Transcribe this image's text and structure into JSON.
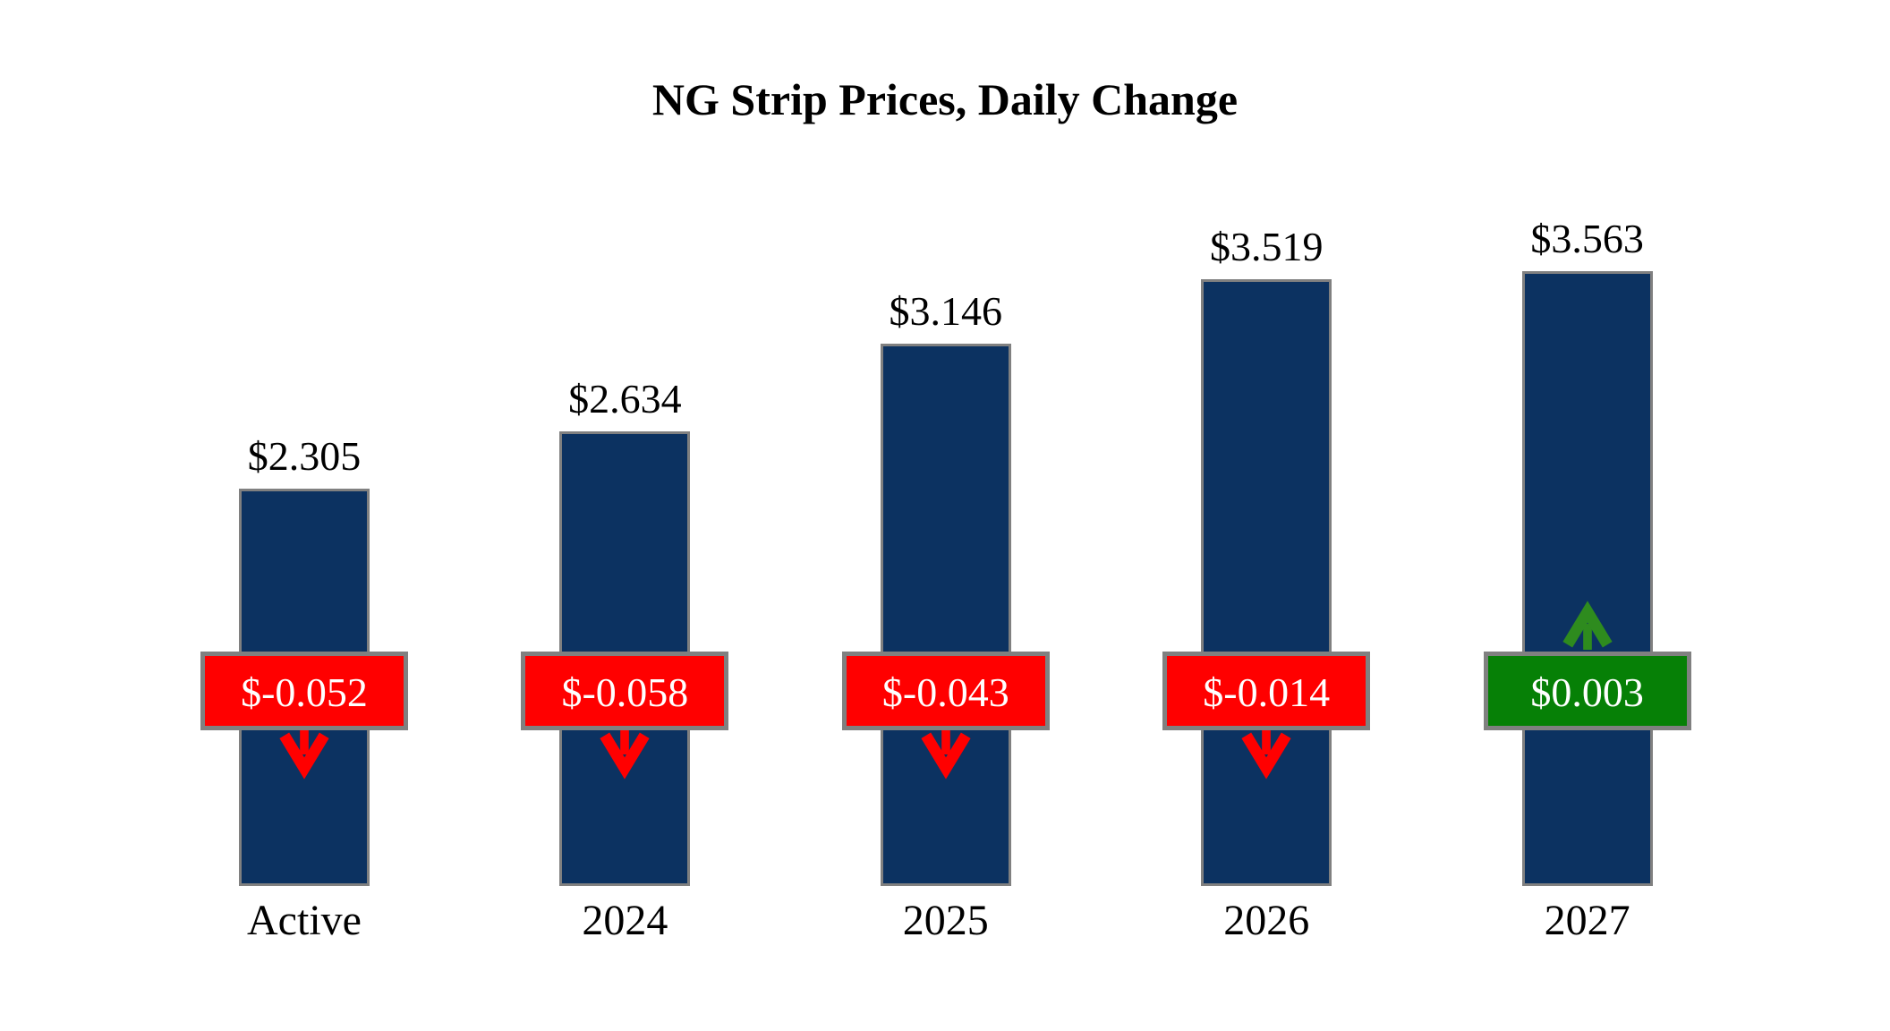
{
  "chart_data": {
    "type": "bar",
    "title": "NG Strip Prices, Daily Change",
    "categories": [
      "Active",
      "2024",
      "2025",
      "2026",
      "2027"
    ],
    "series": [
      {
        "name": "NG strip price",
        "values": [
          2.305,
          2.634,
          3.146,
          3.519,
          3.563
        ]
      }
    ],
    "value_labels": [
      "$2.305",
      "$2.634",
      "$3.146",
      "$3.519",
      "$3.563"
    ],
    "daily_change": {
      "values": [
        -0.052,
        -0.058,
        -0.043,
        -0.014,
        0.003
      ],
      "labels": [
        "$-0.052",
        "$-0.058",
        "$-0.043",
        "$-0.014",
        "$0.003"
      ],
      "directions": [
        "down",
        "down",
        "down",
        "down",
        "up"
      ]
    },
    "ylim": [
      0,
      3.8
    ],
    "xlabel": "",
    "ylabel": "",
    "legend": "none",
    "gridlines": false,
    "axes_visible": false,
    "colors": {
      "background": "#FFFFFF",
      "bar_fill": "#0C3261",
      "bar_border": "#808080",
      "badge_border": "#808080",
      "negative_badge": "#FF0000",
      "positive_badge": "#068006",
      "negative_arrow": "#FF0000",
      "positive_arrow": "#2E8B1E",
      "badge_text": "#FFFFFF",
      "text": "#000000"
    }
  }
}
